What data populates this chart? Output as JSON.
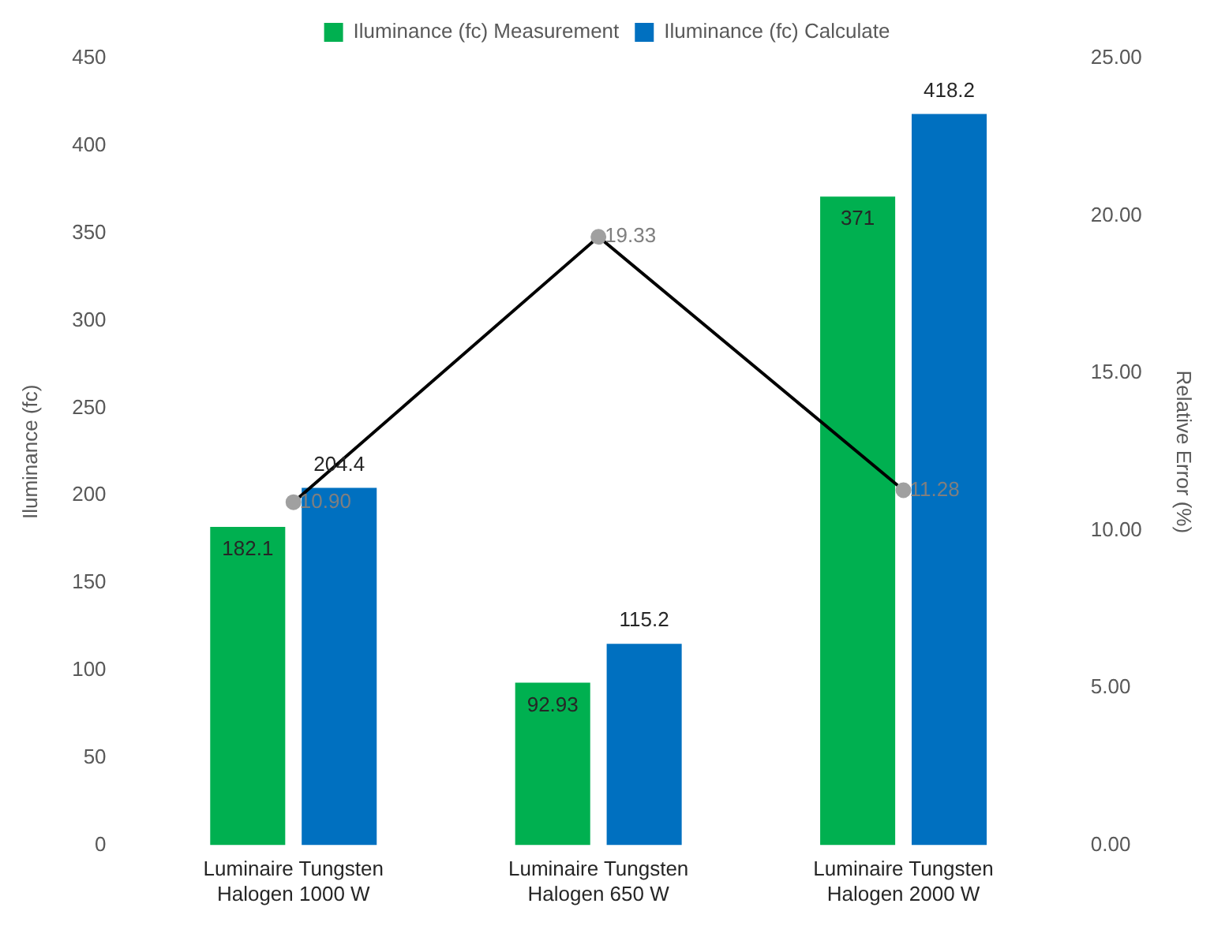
{
  "chart_data": {
    "type": "bar",
    "ylabel": "Iluminance (fc)",
    "y2label": "Relative Error (%)",
    "categories": [
      "Luminaire Tungsten Halogen 1000 W",
      "Luminaire Tungsten Halogen 650 W",
      "Luminaire Tungsten Halogen 2000 W"
    ],
    "series": [
      {
        "name": "Iluminance (fc) Measurement",
        "color": "#00b050",
        "values": [
          182.1,
          92.93,
          371
        ],
        "value_labels": [
          "182.1",
          "92.93",
          "371"
        ]
      },
      {
        "name": "Iluminance (fc) Calculate",
        "color": "#0070c0",
        "values": [
          204.4,
          115.2,
          418.2
        ],
        "value_labels": [
          "204.4",
          "115.2",
          "418.2"
        ]
      },
      {
        "type": "line",
        "axis": "y2",
        "color": "#000000",
        "values": [
          10.9,
          19.33,
          11.28
        ],
        "value_labels": [
          "10.90",
          "19.33",
          "11.28"
        ],
        "marker": "circle"
      }
    ],
    "ylim": [
      0,
      450
    ],
    "yticks": [
      0,
      50,
      100,
      150,
      200,
      250,
      300,
      350,
      400,
      450
    ],
    "y2lim": [
      0,
      25
    ],
    "y2ticks": [
      {
        "value": 0,
        "label": "0.00"
      },
      {
        "value": 5,
        "label": "5.00"
      },
      {
        "value": 10,
        "label": "10.00"
      },
      {
        "value": 15,
        "label": "15.00"
      },
      {
        "value": 20,
        "label": "20.00"
      },
      {
        "value": 25,
        "label": "25.00"
      }
    ],
    "grid": false,
    "legend": "top"
  }
}
